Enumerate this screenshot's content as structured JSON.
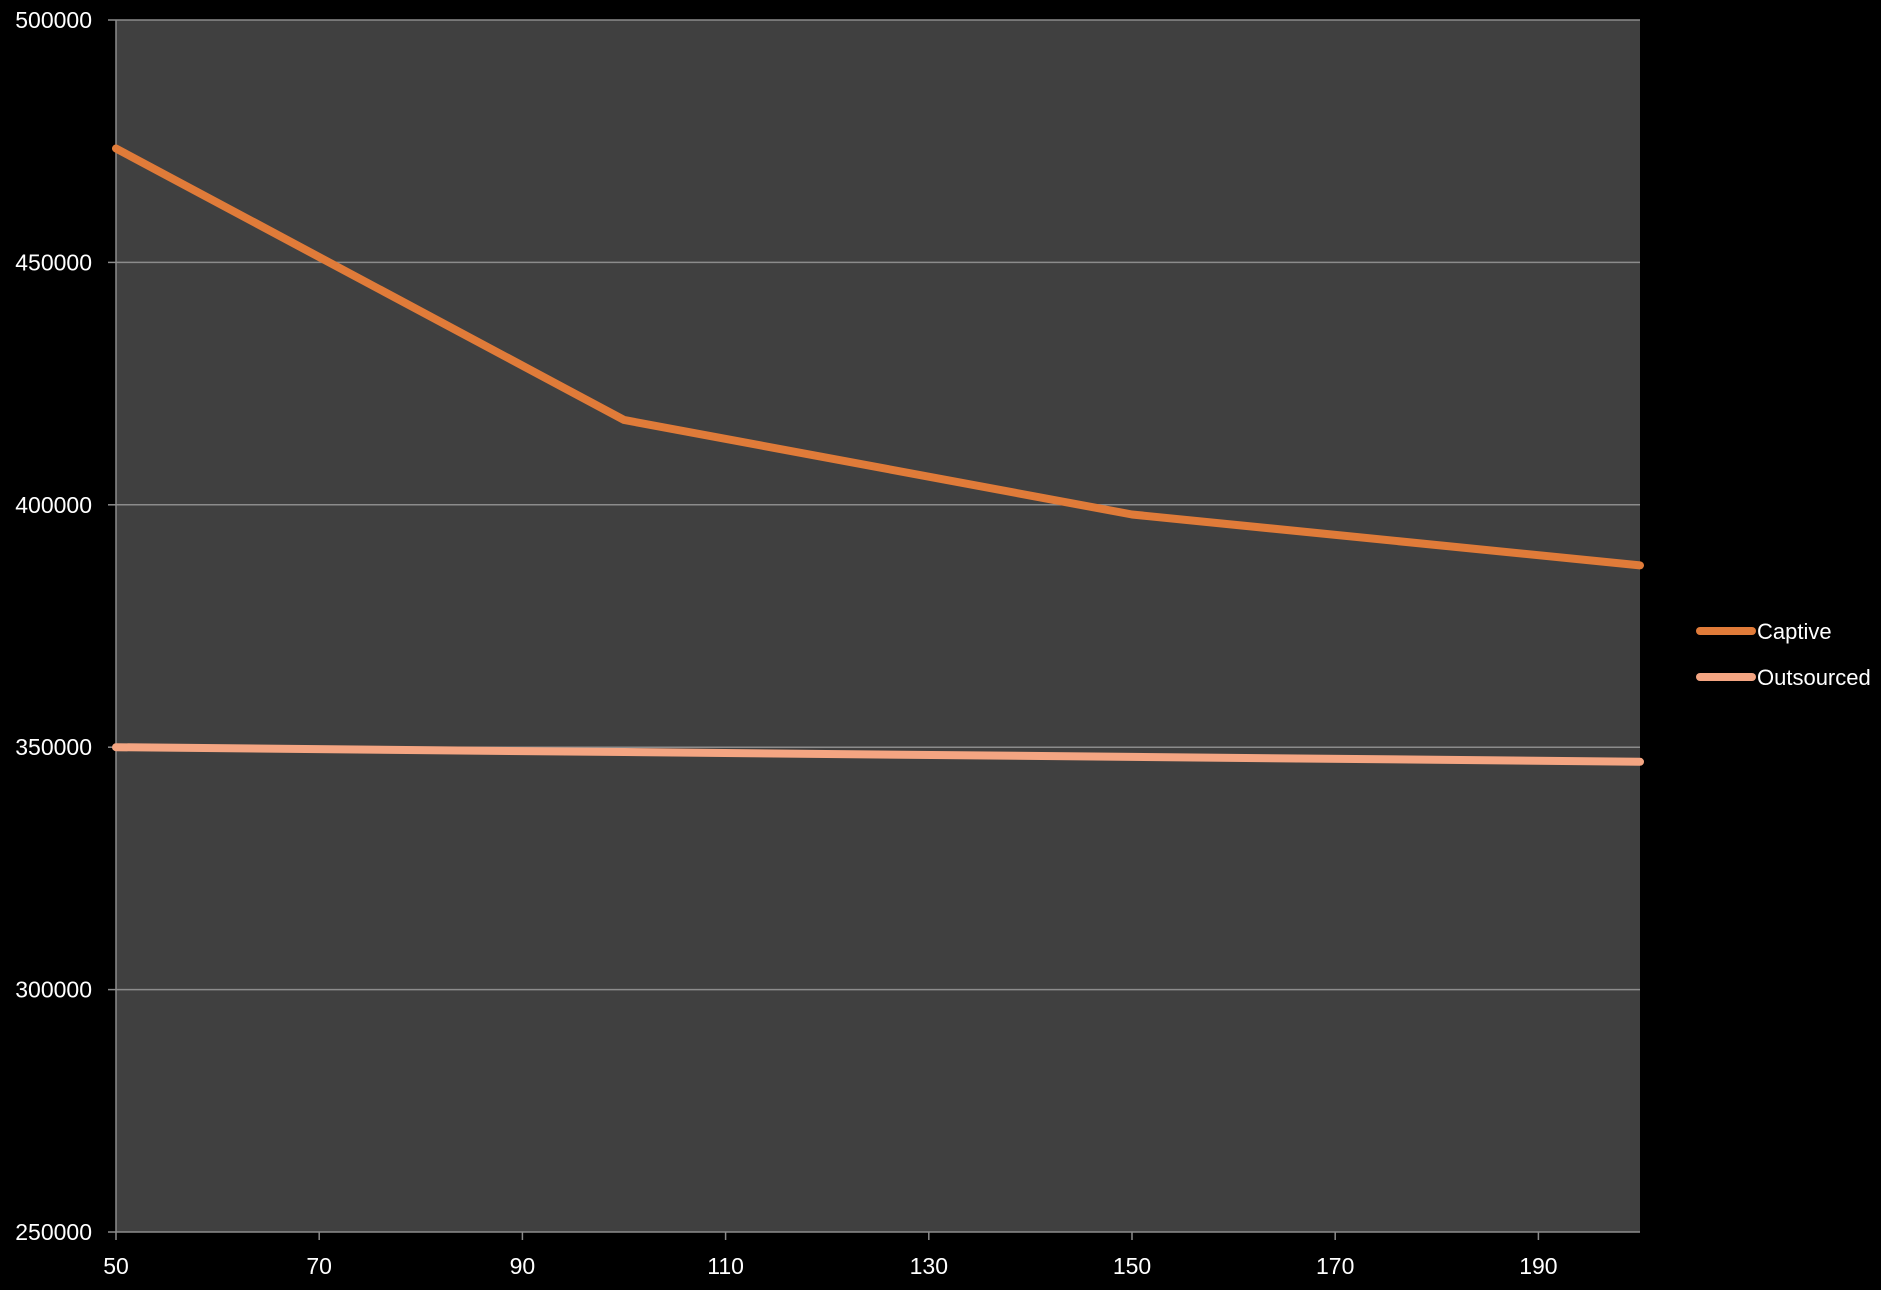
{
  "chart_data": {
    "type": "line",
    "title": "",
    "xlabel": "",
    "ylabel": "",
    "x": [
      50,
      100,
      150,
      200
    ],
    "x_ticks": [
      "50",
      "70",
      "90",
      "110",
      "130",
      "150",
      "170",
      "190"
    ],
    "xlim": [
      50,
      200
    ],
    "y_ticks": [
      "250000",
      "300000",
      "350000",
      "400000",
      "450000",
      "500000"
    ],
    "ylim": [
      250000,
      500000
    ],
    "grid": "horizontal",
    "legend_position": "right",
    "series": [
      {
        "name": "Captive",
        "values": [
          473500,
          417500,
          398000,
          387500
        ],
        "color": "#e07b39"
      },
      {
        "name": "Outsourced",
        "values": [
          350000,
          349000,
          348000,
          347000
        ],
        "color": "#f4a582"
      }
    ],
    "colors": {
      "background": "#000000",
      "plot_area": "#404040",
      "gridline": "#8c8c8c",
      "axis": "#8c8c8c",
      "text": "#ffffff"
    }
  }
}
